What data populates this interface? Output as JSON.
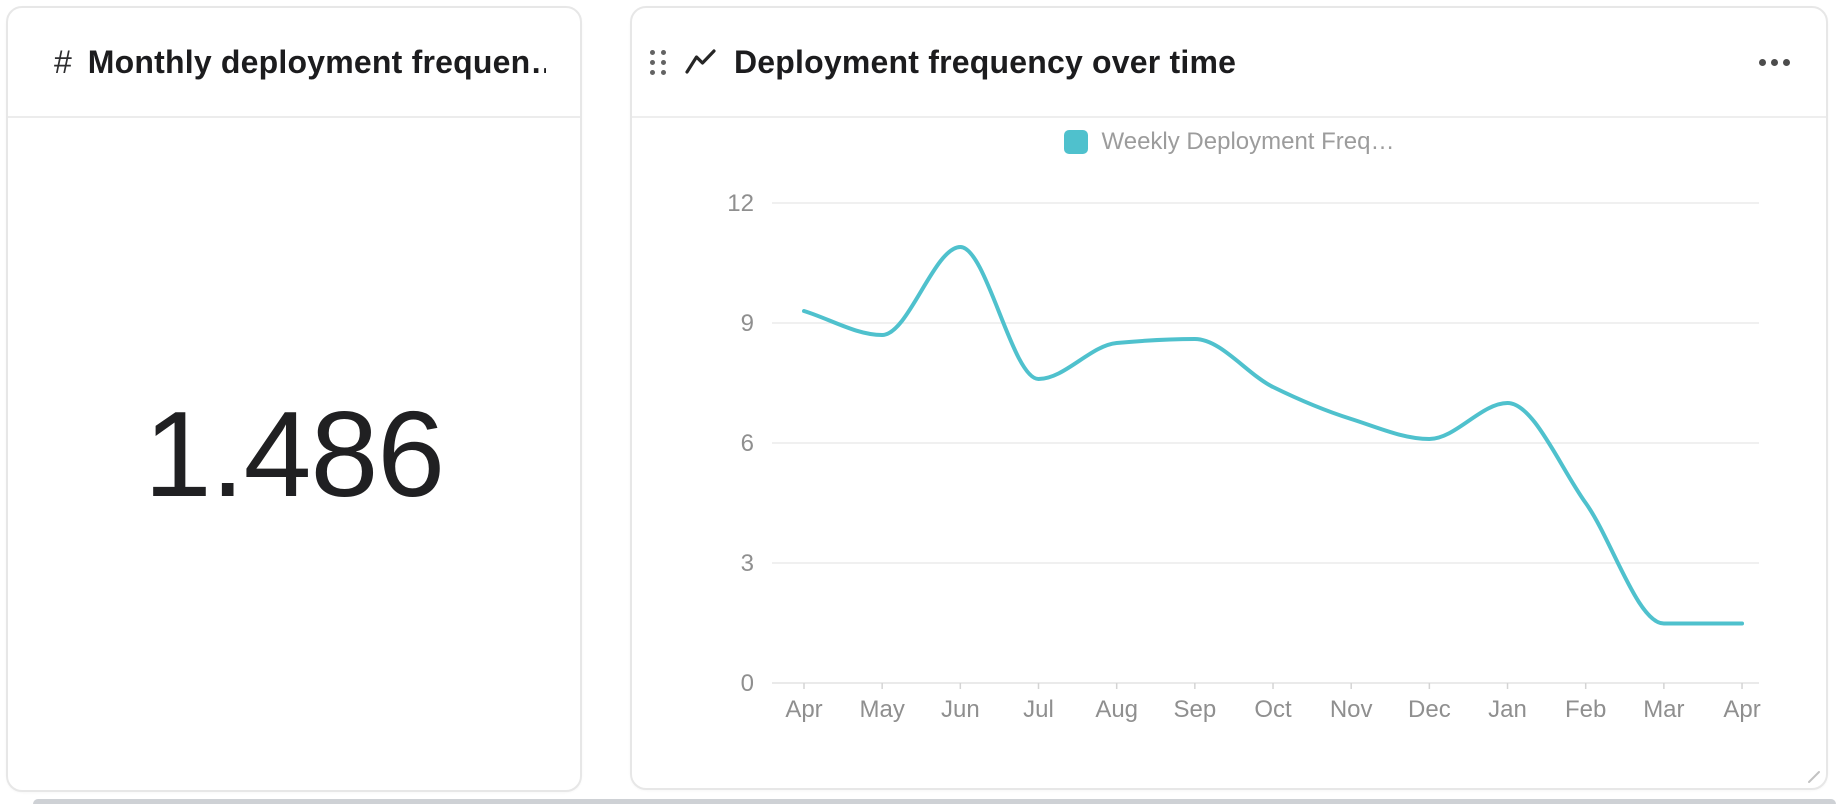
{
  "metric_card": {
    "icon": "#",
    "title": "Monthly deployment frequen…",
    "value": "1.486"
  },
  "chart_card": {
    "title": "Deployment frequency over time",
    "legend_label": "Weekly Deployment Freq…",
    "more_options_label": "more options"
  },
  "chart_data": {
    "type": "line",
    "title": "Deployment frequency over time",
    "categories": [
      "Apr",
      "May",
      "Jun",
      "Jul",
      "Aug",
      "Sep",
      "Oct",
      "Nov",
      "Dec",
      "Jan",
      "Feb",
      "Mar",
      "Apr"
    ],
    "series": [
      {
        "name": "Weekly Deployment Freq…",
        "color": "#4FC1CD",
        "values": [
          9.3,
          8.7,
          10.9,
          7.6,
          8.5,
          8.6,
          7.4,
          6.6,
          6.1,
          7.0,
          4.5,
          1.486,
          1.486
        ]
      }
    ],
    "xlabel": "",
    "ylabel": "",
    "y_ticks": [
      0,
      3,
      6,
      9,
      12
    ],
    "ylim": [
      0,
      12
    ],
    "grid": "horizontal-only",
    "legend_position": "top-center",
    "smoothing": "monotone-cubic"
  },
  "colors": {
    "series_teal": "#4FC1CD",
    "gridline": "#ebebeb",
    "axis_line": "#e3e3e3",
    "tick": "#d4d4d4",
    "axis_label_text": "#8f8f8f",
    "legend_text": "#9c9c9c"
  }
}
